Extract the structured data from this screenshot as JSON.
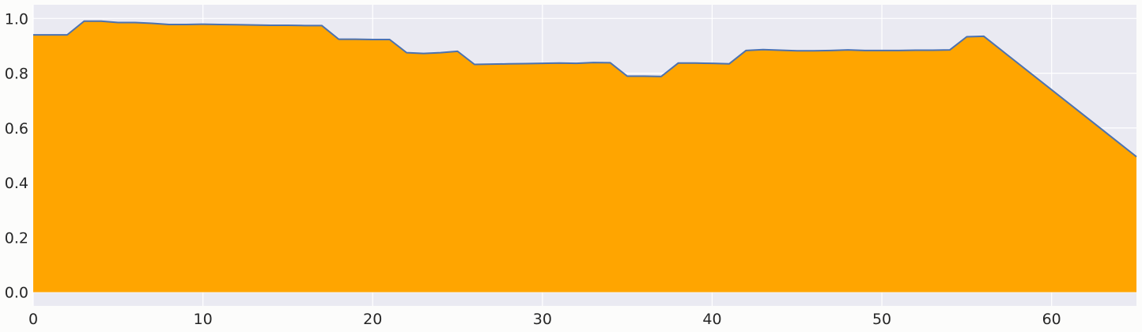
{
  "chart_data": {
    "type": "area",
    "title": "",
    "xlabel": "",
    "ylabel": "",
    "xlim": [
      0,
      65
    ],
    "ylim": [
      -0.05,
      1.05
    ],
    "x_ticks": [
      0,
      10,
      20,
      30,
      40,
      50,
      60
    ],
    "x_tick_labels": [
      "0",
      "10",
      "20",
      "30",
      "40",
      "50",
      "60"
    ],
    "y_ticks": [
      0.0,
      0.2,
      0.4,
      0.6,
      0.8,
      1.0
    ],
    "y_tick_labels": [
      "0.0",
      "0.2",
      "0.4",
      "0.6",
      "0.8",
      "1.0"
    ],
    "grid": true,
    "legend": "none",
    "colors": {
      "plot_background": "#eaeaf2",
      "grid": "#ffffff",
      "fill": "#ffa500",
      "line": "#4c72b0",
      "figure_background": "#fcfcfb"
    },
    "x": [
      0,
      2,
      3,
      4,
      5,
      6,
      7,
      8,
      9,
      10,
      11,
      12,
      13,
      14,
      15,
      16,
      17,
      18,
      19,
      20,
      21,
      22,
      23,
      24,
      25,
      26,
      27,
      28,
      29,
      30,
      31,
      32,
      33,
      34,
      35,
      36,
      37,
      38,
      39,
      40,
      41,
      42,
      43,
      44,
      45,
      46,
      47,
      48,
      49,
      50,
      51,
      52,
      53,
      54,
      55,
      56,
      65
    ],
    "values": [
      0.94,
      0.94,
      0.99,
      0.99,
      0.985,
      0.985,
      0.982,
      0.978,
      0.978,
      0.979,
      0.978,
      0.977,
      0.976,
      0.975,
      0.975,
      0.974,
      0.974,
      0.924,
      0.924,
      0.923,
      0.923,
      0.875,
      0.872,
      0.875,
      0.88,
      0.832,
      0.833,
      0.834,
      0.835,
      0.836,
      0.837,
      0.836,
      0.839,
      0.838,
      0.789,
      0.789,
      0.788,
      0.837,
      0.837,
      0.836,
      0.834,
      0.883,
      0.886,
      0.884,
      0.882,
      0.882,
      0.883,
      0.885,
      0.883,
      0.883,
      0.883,
      0.884,
      0.884,
      0.885,
      0.933,
      0.935,
      0.495
    ]
  }
}
